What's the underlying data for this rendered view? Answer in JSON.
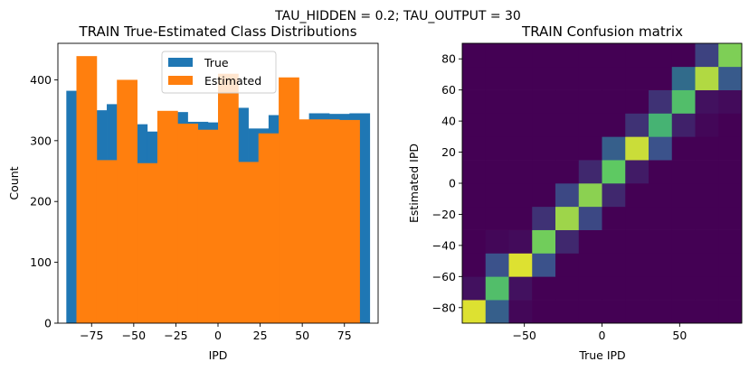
{
  "suptitle": "TAU_HIDDEN = 0.2; TAU_OUTPUT = 30",
  "chart_data": [
    {
      "type": "bar",
      "title": "TRAIN True-Estimated Class Distributions",
      "xlabel": "IPD",
      "ylabel": "Count",
      "xlim": [
        -95,
        95
      ],
      "ylim": [
        0,
        460
      ],
      "xticks": [
        -75,
        -50,
        -25,
        0,
        25,
        50,
        75
      ],
      "xtick_labels": [
        "−75",
        "−50",
        "−25",
        "0",
        "25",
        "50",
        "75"
      ],
      "yticks": [
        0,
        100,
        200,
        300,
        400
      ],
      "yticks_labels": [
        "0",
        "100",
        "200",
        "300",
        "400"
      ],
      "legend": {
        "position": "top-center"
      },
      "series": [
        {
          "name": "True",
          "color": "#1f77b4",
          "bin_edges": [
            -90,
            -78,
            -66,
            -54,
            -42,
            -30,
            -18,
            -6,
            6,
            18,
            30,
            42,
            54,
            66,
            78,
            90
          ],
          "values": [
            382,
            350,
            360,
            327,
            315,
            347,
            331,
            330,
            354,
            320,
            342,
            325,
            345,
            344,
            345
          ]
        },
        {
          "name": "Estimated",
          "color": "#ff7f0e",
          "bin_edges": [
            -84,
            -72,
            -60,
            -48,
            -36,
            -24,
            -12,
            0,
            12,
            24,
            36,
            48,
            60,
            72,
            84
          ],
          "values": [
            439,
            268,
            400,
            263,
            349,
            328,
            318,
            410,
            265,
            312,
            404,
            335,
            335,
            334
          ]
        }
      ]
    },
    {
      "type": "heatmap",
      "title": "TRAIN Confusion matrix",
      "xlabel": "True IPD",
      "ylabel": "Estimated IPD",
      "xlim": [
        -90,
        90
      ],
      "ylim": [
        -90,
        90
      ],
      "xticks": [
        -50,
        0,
        50
      ],
      "xtick_labels": [
        "−50",
        "0",
        "50"
      ],
      "yticks": [
        -80,
        -60,
        -40,
        -20,
        0,
        20,
        40,
        60,
        80
      ],
      "ytick_labels": [
        "−80",
        "−60",
        "−40",
        "−20",
        "0",
        "20",
        "40",
        "60",
        "80"
      ],
      "n_bins": 12,
      "bin_size": 15,
      "colormap": "viridis",
      "matrix": [
        [
          0.95,
          0.3,
          0.02,
          0,
          0,
          0,
          0,
          0,
          0,
          0,
          0,
          0
        ],
        [
          0.05,
          0.7,
          0.05,
          0,
          0,
          0,
          0,
          0,
          0,
          0,
          0,
          0
        ],
        [
          0,
          0.25,
          0.95,
          0.25,
          0,
          0,
          0,
          0,
          0,
          0,
          0,
          0
        ],
        [
          0,
          0.02,
          0.03,
          0.78,
          0.12,
          0,
          0,
          0,
          0,
          0,
          0,
          0
        ],
        [
          0,
          0,
          0,
          0.15,
          0.85,
          0.22,
          0,
          0,
          0,
          0,
          0,
          0
        ],
        [
          0,
          0,
          0,
          0,
          0.22,
          0.82,
          0.12,
          0,
          0,
          0,
          0,
          0
        ],
        [
          0,
          0,
          0,
          0,
          0,
          0.12,
          0.75,
          0.08,
          0,
          0,
          0,
          0
        ],
        [
          0,
          0,
          0,
          0,
          0,
          0,
          0.3,
          0.92,
          0.25,
          0,
          0,
          0
        ],
        [
          0,
          0,
          0,
          0,
          0,
          0,
          0,
          0.15,
          0.65,
          0.1,
          0.02,
          0
        ],
        [
          0,
          0,
          0,
          0,
          0,
          0,
          0,
          0,
          0.15,
          0.7,
          0.05,
          0.03
        ],
        [
          0,
          0,
          0,
          0,
          0,
          0,
          0,
          0,
          0,
          0.35,
          0.88,
          0.28
        ],
        [
          0,
          0,
          0,
          0,
          0,
          0,
          0,
          0,
          0,
          0,
          0.2,
          0.8
        ]
      ]
    }
  ]
}
